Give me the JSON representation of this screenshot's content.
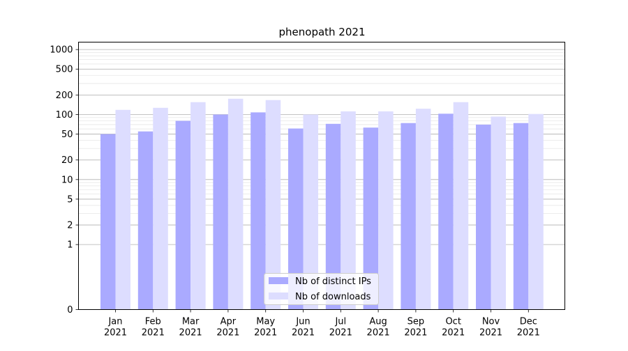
{
  "chart_data": {
    "type": "bar",
    "title": "phenopath 2021",
    "xlabel": "",
    "ylabel": "",
    "yscale": "symlog",
    "ylim": [
      0,
      1300
    ],
    "grid": true,
    "legend_position": "bottom-center",
    "categories": [
      {
        "month": "Jan",
        "year": "2021"
      },
      {
        "month": "Feb",
        "year": "2021"
      },
      {
        "month": "Mar",
        "year": "2021"
      },
      {
        "month": "Apr",
        "year": "2021"
      },
      {
        "month": "May",
        "year": "2021"
      },
      {
        "month": "Jun",
        "year": "2021"
      },
      {
        "month": "Jul",
        "year": "2021"
      },
      {
        "month": "Aug",
        "year": "2021"
      },
      {
        "month": "Sep",
        "year": "2021"
      },
      {
        "month": "Oct",
        "year": "2021"
      },
      {
        "month": "Nov",
        "year": "2021"
      },
      {
        "month": "Dec",
        "year": "2021"
      }
    ],
    "yticks": [
      {
        "value": 0,
        "label": "0"
      },
      {
        "value": 1,
        "label": "1"
      },
      {
        "value": 2,
        "label": "2"
      },
      {
        "value": 5,
        "label": "5"
      },
      {
        "value": 10,
        "label": "10"
      },
      {
        "value": 20,
        "label": "20"
      },
      {
        "value": 50,
        "label": "50"
      },
      {
        "value": 100,
        "label": "100"
      },
      {
        "value": 200,
        "label": "200"
      },
      {
        "value": 500,
        "label": "500"
      },
      {
        "value": 1000,
        "label": "1000"
      }
    ],
    "series": [
      {
        "name": "Nb of distinct IPs",
        "color": "#aaaaff",
        "values": [
          50,
          55,
          80,
          100,
          108,
          61,
          72,
          63,
          74,
          103,
          70,
          74
        ]
      },
      {
        "name": "Nb of downloads",
        "color": "#ddddff",
        "values": [
          118,
          127,
          155,
          175,
          167,
          100,
          112,
          112,
          123,
          155,
          93,
          102
        ]
      }
    ]
  }
}
